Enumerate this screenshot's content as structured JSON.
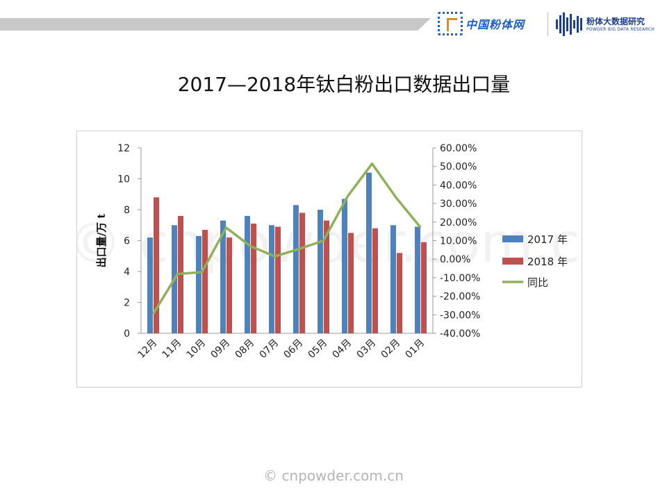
{
  "header": {
    "logo1_text": "中国粉体网",
    "logo2_title": "粉体大数据研究",
    "logo2_subtitle": "POWDER BIG DATA RESEARCH"
  },
  "slide": {
    "title": "2017—2018年钛白粉出口数据出口量"
  },
  "footer": {
    "text": "© cnpowder.com.cn"
  },
  "watermark": {
    "text": "© cnpowder.com.cn"
  },
  "colors": {
    "series2017": "#4f81bd",
    "series2018": "#c0504d",
    "yoy": "#8fb15a",
    "header_band": "#c8c8c8",
    "brand_blue": "#1f5fc2",
    "brand_orange": "#e8881a"
  },
  "chart_data": {
    "type": "bar",
    "categories": [
      "12月",
      "11月",
      "10月",
      "09月",
      "08月",
      "07月",
      "06月",
      "05月",
      "04月",
      "03月",
      "02月",
      "01月"
    ],
    "series": [
      {
        "name": "2017 年",
        "type": "bar",
        "axis": "left",
        "values": [
          6.2,
          7.0,
          6.3,
          7.3,
          7.6,
          7.0,
          8.3,
          8.0,
          8.7,
          10.4,
          7.0,
          6.9
        ]
      },
      {
        "name": "2018 年",
        "type": "bar",
        "axis": "left",
        "values": [
          8.8,
          7.6,
          6.7,
          6.2,
          7.1,
          6.9,
          7.8,
          7.3,
          6.5,
          6.8,
          5.2,
          5.9
        ]
      },
      {
        "name": "同比",
        "type": "line",
        "axis": "right",
        "values": [
          -29.5,
          -8.0,
          -7.0,
          17.0,
          7.0,
          1.5,
          5.5,
          10.0,
          34.0,
          51.5,
          33.0,
          17.0
        ]
      }
    ],
    "ylabel": "出口量/万 t",
    "ylim": [
      0,
      12
    ],
    "yticks": [
      "0",
      "2",
      "4",
      "6",
      "8",
      "10",
      "12"
    ],
    "y2lim": [
      -40,
      60
    ],
    "y2ticks": [
      "-40.00%",
      "-30.00%",
      "-20.00%",
      "-10.00%",
      "0.00%",
      "10.00%",
      "20.00%",
      "30.00%",
      "40.00%",
      "50.00%",
      "60.00%"
    ],
    "grid": false,
    "legend_position": "right"
  }
}
